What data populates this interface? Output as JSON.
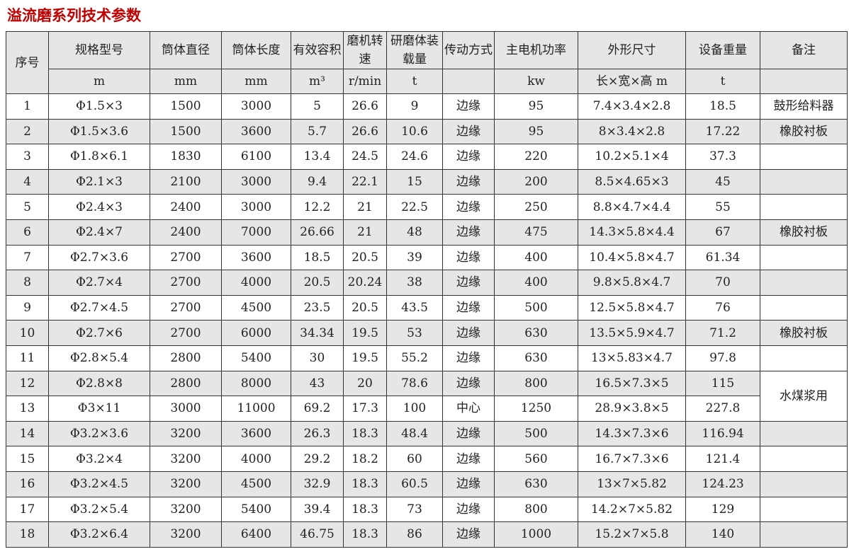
{
  "title": "溢流磨系列技术参数",
  "headers": [
    "序号",
    "规格型号",
    "筒体直径",
    "筒体长度",
    "有效容积",
    "磨机转速",
    "研磨体装载量",
    "传动方式",
    "主电机功率",
    "外形尺寸",
    "设备重量",
    "备注"
  ],
  "units": [
    "m",
    "mm",
    "mm",
    "m³",
    "r/min",
    "t",
    "",
    "kw",
    "长×宽×高 m",
    "t",
    ""
  ],
  "rows": [
    [
      "1",
      "Φ1.5×3",
      "1500",
      "3000",
      "5",
      "26.6",
      "9",
      "边缘",
      "95",
      "7.4×3.4×2.8",
      "18.5",
      "鼓形给料器"
    ],
    [
      "2",
      "Φ1.5×3.6",
      "1500",
      "3600",
      "5.7",
      "26.6",
      "10.6",
      "边缘",
      "95",
      "8×3.4×2.8",
      "17.22",
      "橡胶衬板"
    ],
    [
      "3",
      "Φ1.8×6.1",
      "1830",
      "6100",
      "13.4",
      "24.5",
      "24.6",
      "边缘",
      "220",
      "10.2×5.1×4",
      "37.3",
      ""
    ],
    [
      "4",
      "Φ2.1×3",
      "2100",
      "3000",
      "9.4",
      "22.1",
      "15",
      "边缘",
      "200",
      "8.5×4.65×3",
      "45",
      ""
    ],
    [
      "5",
      "Φ2.4×3",
      "2400",
      "3000",
      "12.2",
      "21",
      "22.5",
      "边缘",
      "250",
      "8.8×4.7×4.4",
      "55",
      ""
    ],
    [
      "6",
      "Φ2.4×7",
      "2400",
      "7000",
      "26.66",
      "21",
      "48",
      "边缘",
      "475",
      "14.3×5.8×4.4",
      "67",
      "橡胶衬板"
    ],
    [
      "7",
      "Φ2.7×3.6",
      "2700",
      "3600",
      "18.5",
      "20.5",
      "39",
      "边缘",
      "400",
      "10.4×5.8×4.7",
      "61.34",
      ""
    ],
    [
      "8",
      "Φ2.7×4",
      "2700",
      "4000",
      "20.5",
      "20.24",
      "38",
      "边缘",
      "400",
      "9.8×5.8×4.7",
      "70",
      ""
    ],
    [
      "9",
      "Φ2.7×4.5",
      "2700",
      "4500",
      "23.5",
      "20.5",
      "43.5",
      "边缘",
      "500",
      "12.5×5.8×4.7",
      "76",
      ""
    ],
    [
      "10",
      "Φ2.7×6",
      "2700",
      "6000",
      "34.34",
      "19.5",
      "53",
      "边缘",
      "630",
      "13.5×5.9×4.7",
      "71.2",
      "橡胶衬板"
    ],
    [
      "11",
      "Φ2.8×5.4",
      "2800",
      "5400",
      "30",
      "19.5",
      "55.2",
      "边缘",
      "630",
      "13×5.83×4.7",
      "97.8",
      ""
    ],
    [
      "12",
      "Φ2.8×8",
      "2800",
      "8000",
      "43",
      "20",
      "78.6",
      "边缘",
      "800",
      "16.5×7.3×5",
      "115",
      "水煤浆用"
    ],
    [
      "13",
      "Φ3×11",
      "3000",
      "11000",
      "69.2",
      "17.3",
      "100",
      "中心",
      "1250",
      "28.9×3.8×5",
      "227.8",
      null
    ],
    [
      "14",
      "Φ3.2×3.6",
      "3200",
      "3600",
      "26.3",
      "18.3",
      "48.4",
      "边缘",
      "500",
      "14.3×7.3×6",
      "116.94",
      ""
    ],
    [
      "15",
      "Φ3.2×4",
      "3200",
      "4000",
      "29.2",
      "18.2",
      "60",
      "边缘",
      "560",
      "16.7×7.3×6",
      "121.4",
      ""
    ],
    [
      "16",
      "Φ3.2×4.5",
      "3200",
      "4500",
      "32.9",
      "18.3",
      "60.5",
      "边缘",
      "630",
      "13×7×5.82",
      "124.23",
      ""
    ],
    [
      "17",
      "Φ3.2×5.4",
      "3200",
      "5400",
      "39.4",
      "18.3",
      "73",
      "边缘",
      "800",
      "14.2×7×5.82",
      "129",
      ""
    ],
    [
      "18",
      "Φ3.2×6.4",
      "3200",
      "6400",
      "46.75",
      "18.3",
      "86",
      "边缘",
      "1000",
      "15.2×7×5.8",
      "140",
      ""
    ]
  ]
}
